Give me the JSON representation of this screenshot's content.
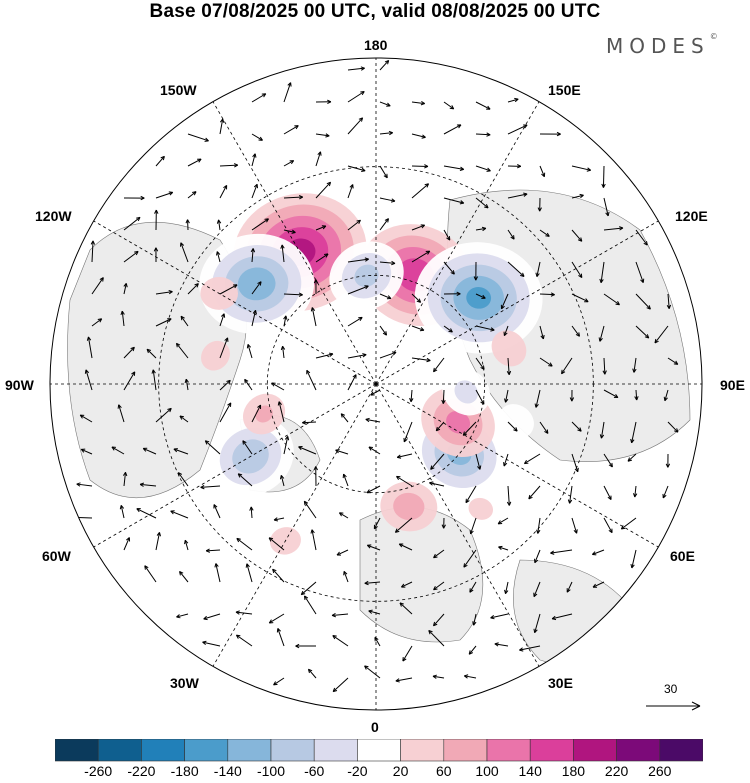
{
  "title": "Base 07/08/2025 00 UTC, valid 08/08/2025 00 UTC",
  "brand": "MODES",
  "brand_mark": "©",
  "longitude_labels": {
    "top": "180",
    "bottom": "0",
    "left": "90W",
    "right": "90E",
    "upper_left_1": "150W",
    "upper_left_2": "120W",
    "upper_right_1": "150E",
    "upper_right_2": "120E",
    "lower_left_1": "60W",
    "lower_left_2": "30W",
    "lower_right_1": "60E",
    "lower_right_2": "30E"
  },
  "vector_scale": {
    "value": "30"
  },
  "colorbar": {
    "tick_labels": [
      "-260",
      "-220",
      "-180",
      "-140",
      "-100",
      "-60",
      "-20",
      "20",
      "60",
      "100",
      "140",
      "180",
      "220",
      "260"
    ],
    "colors": [
      "#0b3a5c",
      "#0f5f8f",
      "#2180b9",
      "#4b9ccb",
      "#86b6da",
      "#b7c9e3",
      "#dcdcee",
      "#ffffff",
      "#f7d0d3",
      "#f1a9b6",
      "#ea74aa",
      "#db3f9b",
      "#b0157f",
      "#7c0a79",
      "#4b0a67"
    ]
  },
  "anomalies": [
    {
      "lon": -150,
      "lat": 48,
      "value": 200
    },
    {
      "lon": -130,
      "lat": 47,
      "value": -170
    },
    {
      "lon": 160,
      "lat": 58,
      "value": 170
    },
    {
      "lon": 130,
      "lat": 53,
      "value": -190
    },
    {
      "lon": -175,
      "lat": 60,
      "value": -110
    },
    {
      "lon": 50,
      "lat": 60,
      "value": -150
    },
    {
      "lon": 65,
      "lat": 65,
      "value": 110
    },
    {
      "lon": 15,
      "lat": 55,
      "value": 80
    },
    {
      "lon": -60,
      "lat": 50,
      "value": -130
    },
    {
      "lon": -75,
      "lat": 58,
      "value": 60
    },
    {
      "lon": 105,
      "lat": 52,
      "value": 50
    },
    {
      "lon": -100,
      "lat": 45,
      "value": 40
    },
    {
      "lon": 75,
      "lat": 50,
      "value": -50
    },
    {
      "lon": 85,
      "lat": 65,
      "value": -70
    },
    {
      "lon": -120,
      "lat": 40,
      "value": 50
    },
    {
      "lon": -30,
      "lat": 40,
      "value": 40
    },
    {
      "lon": 40,
      "lat": 45,
      "value": 30
    }
  ]
}
